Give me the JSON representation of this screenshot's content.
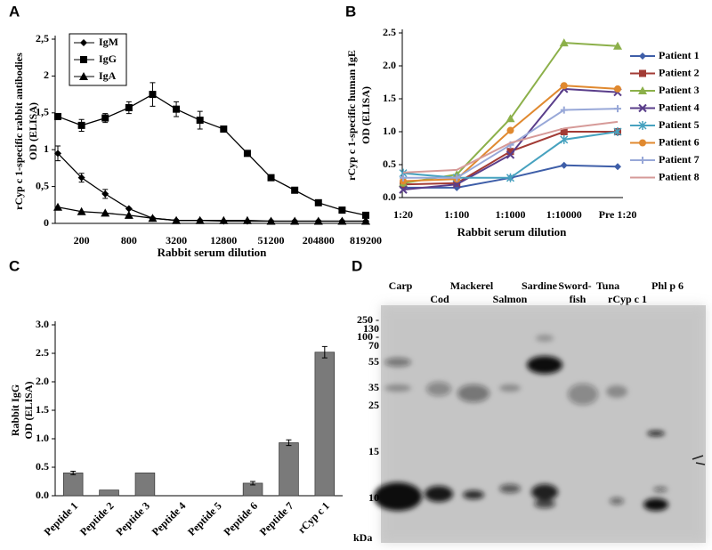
{
  "chart_data": [
    {
      "panel": "A",
      "type": "line",
      "ylabel": [
        "rCyp c 1-specific rabbit antibodies",
        "OD (ELISA)"
      ],
      "xlabel": "Rabbit serum dilution",
      "categories": [
        null,
        "200",
        null,
        "800",
        null,
        "3200",
        null,
        "12800",
        null,
        "51200",
        null,
        "204800",
        null,
        "819200"
      ],
      "ylim": [
        0,
        2.5
      ],
      "yticks": [
        0,
        {
          "value": 0.5,
          "label": "0,5"
        },
        1,
        {
          "value": 1.5,
          "label": "1,5"
        },
        2,
        {
          "value": 2.5,
          "label": "2,5"
        }
      ],
      "legend": "upper left",
      "series": [
        {
          "name": "IgM",
          "color": "#000000",
          "marker": "diamond",
          "values": [
            0.95,
            0.62,
            0.4,
            0.2,
            0.07,
            0.04,
            0.04,
            0.03,
            0.03,
            0.03,
            0.03,
            0.03,
            0.03,
            0.03
          ],
          "errors": [
            0.1,
            0.06,
            0.06,
            null,
            null,
            null,
            null,
            null,
            null,
            null,
            null,
            null,
            null,
            null
          ]
        },
        {
          "name": "IgG",
          "color": "#000000",
          "marker": "square",
          "values": [
            1.45,
            1.33,
            1.43,
            1.57,
            1.75,
            1.55,
            1.4,
            1.28,
            0.95,
            0.62,
            0.45,
            0.28,
            0.18,
            0.11
          ],
          "errors": [
            0.04,
            0.08,
            0.06,
            0.08,
            0.16,
            0.1,
            0.12,
            null,
            null,
            null,
            null,
            null,
            null,
            null
          ]
        },
        {
          "name": "IgA",
          "color": "#000000",
          "marker": "triangle",
          "values": [
            0.22,
            0.16,
            0.14,
            0.11,
            0.07,
            0.04,
            0.04,
            0.04,
            0.04,
            0.03,
            0.03,
            0.03,
            0.03,
            0.03
          ],
          "errors": [
            null,
            null,
            null,
            null,
            null,
            null,
            null,
            null,
            null,
            null,
            null,
            null,
            null,
            null
          ]
        }
      ]
    },
    {
      "panel": "B",
      "type": "line",
      "ylabel": [
        "rCyp c 1-specific human IgE",
        "OD (ELISA)"
      ],
      "xlabel": "Rabbit serum dilution",
      "categories": [
        "1:20",
        "1:100",
        "1:1000",
        "1:10000",
        "Pre 1:20"
      ],
      "ylim": [
        0,
        2.5
      ],
      "yticks": [
        {
          "value": 0,
          "label": "0.0"
        },
        {
          "value": 0.5,
          "label": "0.5"
        },
        {
          "value": 1,
          "label": "1.0"
        },
        {
          "value": 1.5,
          "label": "1.5"
        },
        {
          "value": 2,
          "label": "2.0"
        },
        {
          "value": 2.5,
          "label": "2.5"
        }
      ],
      "legend": "right",
      "series": [
        {
          "name": "Patient 1",
          "color": "#3e5ea8",
          "marker": "diamond",
          "values": [
            0.15,
            0.15,
            0.3,
            0.49,
            0.47
          ]
        },
        {
          "name": "Patient 2",
          "color": "#a23b35",
          "marker": "square",
          "values": [
            0.2,
            0.22,
            0.7,
            1.0,
            1.0
          ]
        },
        {
          "name": "Patient 3",
          "color": "#8cb04a",
          "marker": "triangle",
          "values": [
            0.22,
            0.35,
            1.2,
            2.35,
            2.3
          ]
        },
        {
          "name": "Patient 4",
          "color": "#5a3e8a",
          "marker": "x",
          "values": [
            0.12,
            0.2,
            0.65,
            1.65,
            1.6
          ]
        },
        {
          "name": "Patient 5",
          "color": "#47a2bf",
          "marker": "star",
          "values": [
            0.37,
            0.3,
            0.3,
            0.88,
            1.0
          ]
        },
        {
          "name": "Patient 6",
          "color": "#e0892f",
          "marker": "circle",
          "values": [
            0.25,
            0.28,
            1.02,
            1.7,
            1.65
          ]
        },
        {
          "name": "Patient 7",
          "color": "#98a8d8",
          "marker": "plus",
          "values": [
            0.3,
            0.3,
            0.8,
            1.33,
            1.35
          ]
        },
        {
          "name": "Patient 8",
          "color": "#d69a98",
          "marker": "none",
          "values": [
            0.38,
            0.42,
            0.83,
            1.05,
            1.15
          ]
        }
      ]
    },
    {
      "panel": "C",
      "type": "bar",
      "ylabel": [
        "Rabbit IgG",
        "OD (ELISA)"
      ],
      "categories": [
        "Peptide 1",
        "Peptide 2",
        "Peptide 3",
        "Peptide 4",
        "Peptide 5",
        "Peptide 6",
        "Peptide 7",
        "rCyp c 1"
      ],
      "values": [
        0.4,
        0.1,
        0.4,
        0,
        0,
        0.22,
        0.93,
        2.52
      ],
      "errors": [
        0.03,
        null,
        null,
        null,
        null,
        0.03,
        0.05,
        0.1
      ],
      "color": "#7a7a7a",
      "ylim": [
        0,
        3
      ],
      "yticks": [
        {
          "value": 0,
          "label": "0.0"
        },
        {
          "value": 0.5,
          "label": "0.5"
        },
        {
          "value": 1,
          "label": "1.0"
        },
        {
          "value": 1.5,
          "label": "1.5"
        },
        {
          "value": 2,
          "label": "2.0"
        },
        {
          "value": 2.5,
          "label": "2.5"
        },
        {
          "value": 3,
          "label": "3.0"
        }
      ]
    }
  ],
  "gel": {
    "panel": "D",
    "lanes": [
      "Carp",
      "Cod",
      "Mackerel",
      "Salmon",
      "Sardine",
      [
        "Sword-",
        "fish"
      ],
      "Tuna",
      "rCyp c 1",
      "Phl p 6"
    ],
    "markers": [
      "250 -",
      "130",
      "100 -",
      "70",
      "55",
      "35",
      "25",
      "15",
      "10"
    ],
    "unit": "kDa"
  }
}
